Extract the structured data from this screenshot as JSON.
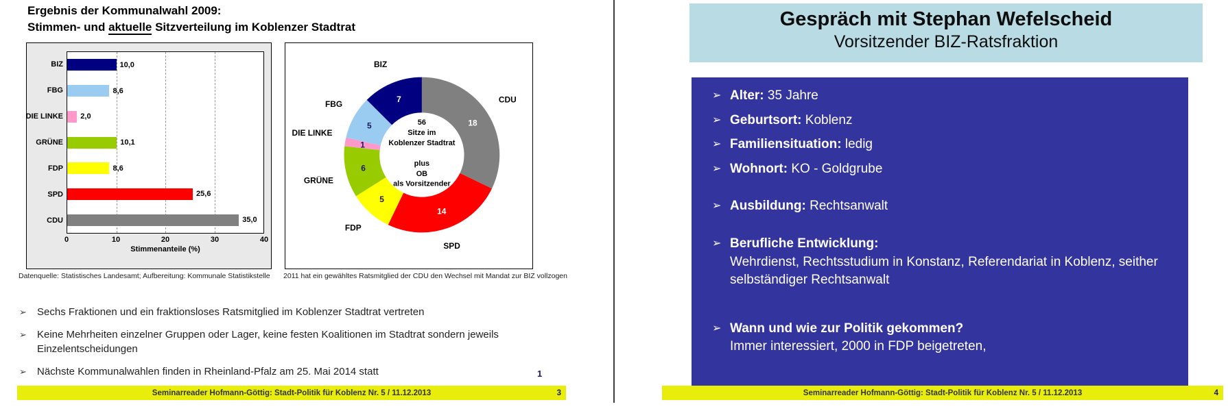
{
  "left_slide": {
    "title": {
      "line1": "Ergebnis der Kommunalwahl 2009:",
      "line2_prefix": "Stimmen- und ",
      "line2_underline": "aktuelle",
      "line2_suffix": " Sitzverteilung im Koblenzer Stadtrat"
    },
    "bar_note": "Datenquelle: Statistisches Landesamt; Aufbereitung: Kommunale Statistikstelle",
    "pie_note": "2011 hat ein gewähltes Ratsmitglied der CDU den Wechsel mit Mandat zur BIZ vollzogen",
    "bullets": [
      "Sechs Fraktionen und ein fraktionsloses Ratsmitglied im Koblenzer Stadtrat vertreten",
      "Keine Mehrheiten einzelner Gruppen oder Lager, keine festen Koalitionen im Stadtrat sondern jeweils Einzelentscheidungen",
      "Nächste Kommunalwahlen finden in Rheinland-Pfalz am 25. Mai 2014 statt"
    ],
    "corner_number": "1",
    "footer": {
      "text": "Seminarreader Hofmann-Göttig: Stadt-Politik für Koblenz Nr. 5 / 11.12.2013",
      "page": "3"
    }
  },
  "right_slide": {
    "title": {
      "line1": "Gespräch mit Stephan Wefelscheid",
      "line2": "Vorsitzender BIZ-Ratsfraktion"
    },
    "items": [
      {
        "label": "Alter:",
        "text": "35 Jahre"
      },
      {
        "label": "Geburtsort:",
        "text": "Koblenz"
      },
      {
        "label": "Familiensituation:",
        "text": "ledig"
      },
      {
        "label": "Wohnort:",
        "text": "KO - Goldgrube"
      },
      {
        "label": "Ausbildung:",
        "text": "Rechtsanwalt",
        "gap": "sm"
      },
      {
        "label": "Berufliche Entwicklung:",
        "text": "",
        "gap": "sm",
        "sub": "Wehrdienst, Rechtsstudium in Konstanz, Referendariat in Koblenz, seither selbständiger Rechtsanwalt"
      },
      {
        "label": "Wann und wie zur Politik gekommen?",
        "text": "",
        "gap": "lg",
        "sub": "Immer interessiert, 2000 in FDP beigetreten,"
      }
    ],
    "footer": {
      "text": "Seminarreader Hofmann-Göttig: Stadt-Politik für Koblenz Nr. 5 / 11.12.2013",
      "page": "4"
    }
  },
  "colors": {
    "footer_bar": "#e9ed0b",
    "title_box_cyan": "#b9dce4",
    "panel_blue": "#34349e",
    "panel_gray": "#e9e9e9"
  },
  "chart_data": [
    {
      "type": "bar",
      "orientation": "horizontal",
      "categories": [
        "BIZ",
        "FBG",
        "DIE LINKE",
        "GRÜNE",
        "FDP",
        "SPD",
        "CDU"
      ],
      "values": [
        10.0,
        8.6,
        2.0,
        10.1,
        8.6,
        25.6,
        35.0
      ],
      "value_labels": [
        "10,0",
        "8,6",
        "2,0",
        "10,1",
        "8,6",
        "25,6",
        "35,0"
      ],
      "colors": [
        "#000080",
        "#99ccf0",
        "#ff99cc",
        "#99cc00",
        "#ffff00",
        "#ff0000",
        "#808080"
      ],
      "title": "",
      "xlabel": "Stimmenanteile (%)",
      "ylabel": "",
      "xlim": [
        0,
        40
      ],
      "xticks": [
        0,
        10,
        20,
        30,
        40
      ],
      "grid": "vertical dashed at 10/20/30"
    },
    {
      "type": "donut",
      "total": 56,
      "start": "12 o'clock, clockwise",
      "segments": [
        {
          "name": "CDU",
          "value": 18,
          "color": "#808080",
          "value_color": "#ffffff"
        },
        {
          "name": "SPD",
          "value": 14,
          "color": "#ff0000",
          "value_color": "#ffffff"
        },
        {
          "name": "FDP",
          "value": 5,
          "color": "#ffff00",
          "value_color": "#1a1a5a"
        },
        {
          "name": "GRÜNE",
          "value": 6,
          "color": "#99cc00",
          "value_color": "#1a1a5a"
        },
        {
          "name": "DIE LINKE",
          "value": 1,
          "color": "#ff99cc",
          "value_color": "#1a1a5a"
        },
        {
          "name": "FBG",
          "value": 5,
          "color": "#99ccf0",
          "value_color": "#1a1a5a"
        },
        {
          "name": "BIZ",
          "value": 7,
          "color": "#000080",
          "value_color": "#ffffff"
        }
      ],
      "center_lines": [
        "56",
        "Sitze im",
        "Koblenzer Stadtrat",
        "",
        "plus",
        "OB",
        "als Vorsitzender"
      ]
    }
  ]
}
